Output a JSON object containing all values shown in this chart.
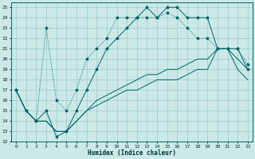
{
  "xlabel": "Humidex (Indice chaleur)",
  "xlim": [
    -0.5,
    23.5
  ],
  "ylim": [
    12,
    25.5
  ],
  "yticks": [
    12,
    13,
    14,
    15,
    16,
    17,
    18,
    19,
    20,
    21,
    22,
    23,
    24,
    25
  ],
  "xticks": [
    0,
    1,
    2,
    3,
    4,
    5,
    6,
    7,
    8,
    9,
    10,
    11,
    12,
    13,
    14,
    15,
    16,
    17,
    18,
    19,
    20,
    21,
    22,
    23
  ],
  "background_color": "#cce8e8",
  "grid_color": "#99cccc",
  "line_color": "#006666",
  "series1_y": [
    17,
    15,
    14,
    15,
    12.5,
    13,
    15,
    17,
    19,
    21,
    22,
    23,
    24,
    25,
    24,
    25,
    25,
    24,
    24,
    24,
    21,
    21,
    21,
    19
  ],
  "series2_y": [
    17,
    15,
    14,
    23,
    16,
    15,
    17,
    20,
    21,
    22,
    24,
    24,
    24,
    24,
    24,
    24.5,
    24,
    23,
    22,
    22,
    21,
    21,
    21,
    19.5
  ],
  "series3_y": [
    17,
    15,
    14,
    14,
    13,
    13,
    14,
    15,
    16,
    16.5,
    17,
    17.5,
    18,
    18.5,
    18.5,
    19,
    19,
    19.5,
    20,
    20,
    21,
    21,
    20,
    19
  ],
  "series4_y": [
    17,
    15,
    14,
    14,
    13,
    13,
    14,
    15,
    15.5,
    16,
    16.5,
    17,
    17,
    17.5,
    18,
    18,
    18,
    18.5,
    19,
    19,
    21,
    21,
    19,
    18
  ]
}
